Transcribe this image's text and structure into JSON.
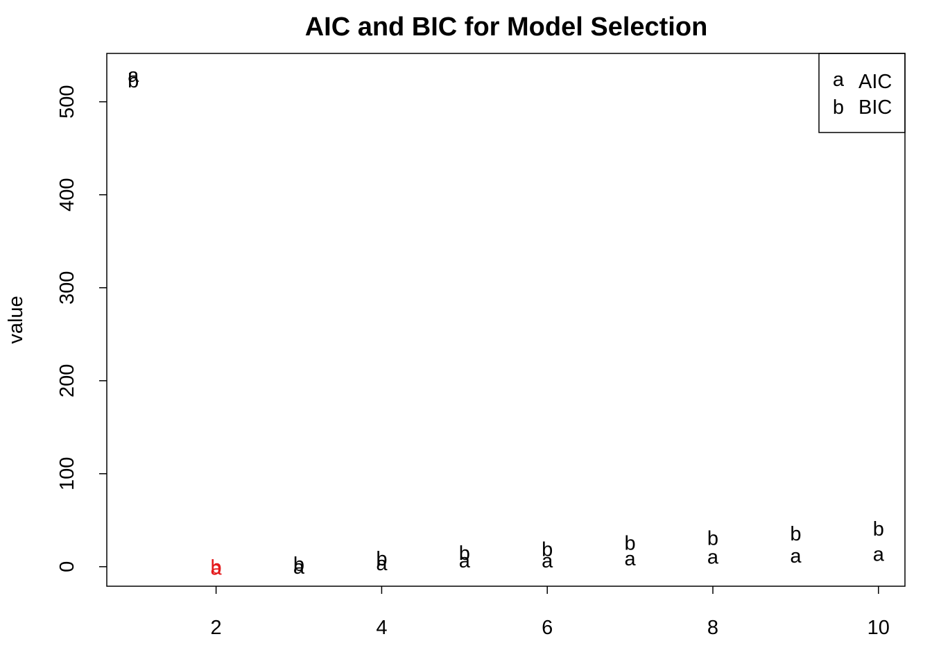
{
  "chart_data": {
    "type": "scatter",
    "title": "AIC and BIC for Model Selection",
    "xlabel": "",
    "ylabel": "value",
    "x": [
      1,
      2,
      3,
      4,
      5,
      6,
      7,
      8,
      9,
      10
    ],
    "series": [
      {
        "name": "AIC",
        "marker": "a",
        "values": [
          528,
          -2,
          -1,
          3,
          6,
          6,
          8,
          10,
          11,
          13
        ]
      },
      {
        "name": "BIC",
        "marker": "b",
        "values": [
          522,
          -1,
          2,
          8,
          14,
          18,
          25,
          30,
          35,
          40
        ]
      }
    ],
    "highlight": {
      "x": 2,
      "color": "#e41a1c"
    },
    "xlim": [
      0.68,
      10.32
    ],
    "ylim": [
      -21,
      552
    ],
    "xticks": [
      2,
      4,
      6,
      8,
      10
    ],
    "yticks": [
      0,
      100,
      200,
      300,
      400,
      500
    ],
    "grid": false,
    "legend": "top-right",
    "default_color": "#000000"
  }
}
